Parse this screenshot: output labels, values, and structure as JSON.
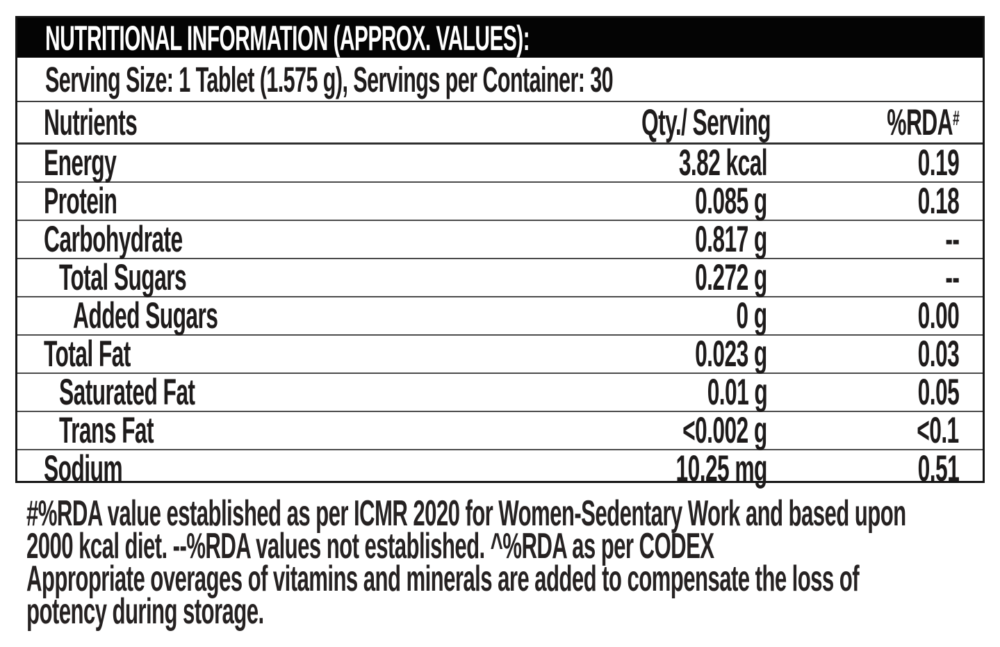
{
  "title": "NUTRITIONAL INFORMATION (APPROX. VALUES):",
  "serving_line": "Serving Size: 1 Tablet (1.575 g), Servings per Container: 30",
  "columns": {
    "nutrients": "Nutrients",
    "qty": "Qty./ Serving",
    "rda": "%RDA",
    "rda_sup": "#"
  },
  "rows": [
    {
      "name": "Energy",
      "qty": "3.82 kcal",
      "rda": "0.19",
      "indent": 0
    },
    {
      "name": "Protein",
      "qty": "0.085 g",
      "rda": "0.18",
      "indent": 0
    },
    {
      "name": "Carbohydrate",
      "qty": "0.817 g",
      "rda": "--",
      "indent": 0
    },
    {
      "name": "Total Sugars",
      "qty": "0.272 g",
      "rda": "--",
      "indent": 1
    },
    {
      "name": "Added Sugars",
      "qty": "0 g",
      "rda": "0.00",
      "indent": 2
    },
    {
      "name": "Total Fat",
      "qty": "0.023 g",
      "rda": "0.03",
      "indent": 0
    },
    {
      "name": "Saturated Fat",
      "qty": "0.01 g",
      "rda": "0.05",
      "indent": 1
    },
    {
      "name": "Trans Fat",
      "qty": "<0.002 g",
      "rda": "<0.1",
      "indent": 1
    },
    {
      "name": "Sodium",
      "qty": "10.25 mg",
      "rda": "0.51",
      "indent": 0
    }
  ],
  "footnote": {
    "lines": [
      "#%RDA value established as per ICMR 2020 for Women-Sedentary Work and based upon",
      "2000 kcal diet. --%RDA values not established. ^%RDA as per CODEX",
      "Appropriate overages of vitamins and minerals are added to compensate the loss of",
      "potency during storage."
    ]
  },
  "colors": {
    "header_bg": "#040404",
    "header_text": "#ffffff",
    "text": "#1e1b1b",
    "border": "#4a4a4a",
    "outer_border": "#141414"
  }
}
